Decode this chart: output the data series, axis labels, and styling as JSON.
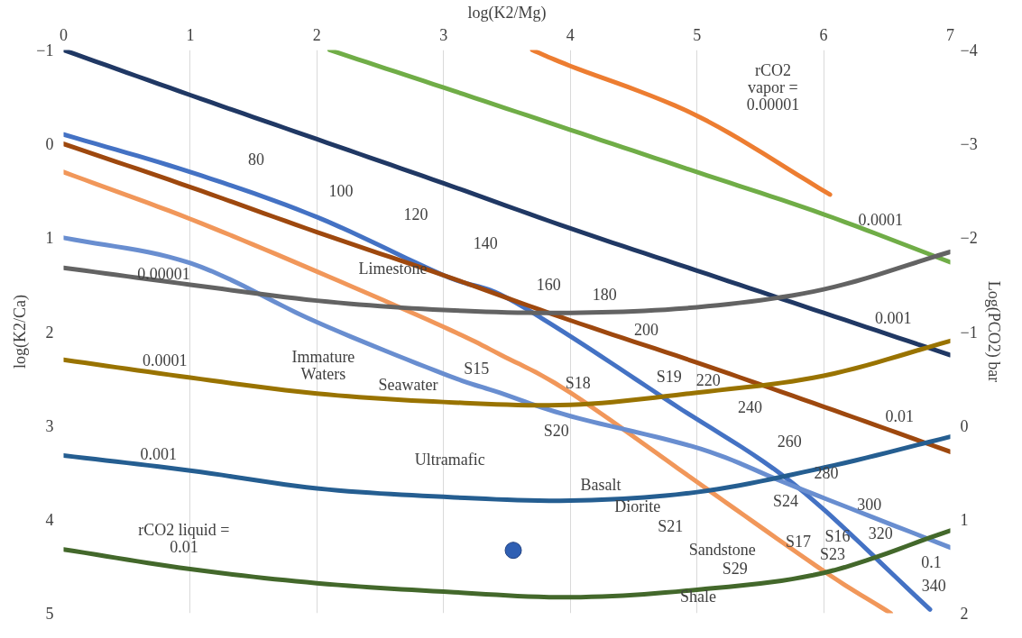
{
  "chart_data": {
    "type": "line",
    "xlabel": "log(K2/Mg)",
    "ylabel": "log(K2/Ca)",
    "y2label": "Log(PCO2) bar",
    "xlim": [
      0,
      7
    ],
    "xticks": [
      0,
      1,
      2,
      3,
      4,
      5,
      6,
      7
    ],
    "ylim": [
      5,
      -1
    ],
    "yticks": [
      -1,
      0,
      1,
      2,
      3,
      4,
      5
    ],
    "y2lim": [
      2,
      -4
    ],
    "y2ticks": [
      -4,
      -3,
      -2,
      -1,
      0,
      1,
      2
    ],
    "grid": "x",
    "marker": "none",
    "line_style": "solid",
    "series": [
      {
        "color": "#203864",
        "x": [
          0,
          1,
          2,
          3,
          4,
          5,
          6,
          7
        ],
        "values": [
          -1,
          -0.52,
          -0.05,
          0.42,
          0.9,
          1.35,
          1.8,
          2.25
        ]
      },
      {
        "color": "#70ad47",
        "x": [
          2.1,
          3,
          4,
          5,
          6,
          7
        ],
        "values": [
          -1,
          -0.6,
          -0.15,
          0.3,
          0.75,
          1.26
        ]
      },
      {
        "color": "#ed7d31",
        "x": [
          3.7,
          4,
          5,
          6.05
        ],
        "values": [
          -1,
          -0.83,
          -0.3,
          0.54
        ]
      },
      {
        "color": "#4472c4",
        "x": [
          0,
          1,
          2,
          3,
          3.44,
          4,
          4.81,
          5.77,
          6.84
        ],
        "values": [
          -0.1,
          0.3,
          0.78,
          1.4,
          1.6,
          2.05,
          2.77,
          3.63,
          4.96
        ]
      },
      {
        "color": "#9e480e",
        "x": [
          0,
          1,
          2,
          3,
          4,
          5,
          6,
          7
        ],
        "values": [
          0,
          0.46,
          0.94,
          1.4,
          1.88,
          2.33,
          2.8,
          3.28
        ]
      },
      {
        "color": "#f1975a",
        "x": [
          0,
          1,
          2,
          3,
          3.44,
          4,
          5.03,
          6,
          6.53
        ],
        "values": [
          0.3,
          0.8,
          1.36,
          1.95,
          2.24,
          2.65,
          3.63,
          4.55,
          5
        ]
      },
      {
        "color": "#698ed0",
        "x": [
          0,
          1,
          2,
          3,
          3.44,
          4,
          5.03,
          5.77,
          7
        ],
        "values": [
          1,
          1.27,
          1.9,
          2.45,
          2.65,
          2.9,
          3.25,
          3.65,
          4.3
        ]
      },
      {
        "color": "#636363",
        "x": [
          0,
          1,
          2,
          3,
          4,
          5,
          6,
          7
        ],
        "values": [
          1.32,
          1.5,
          1.67,
          1.77,
          1.8,
          1.74,
          1.55,
          1.15
        ]
      },
      {
        "color": "#997300",
        "x": [
          0,
          1,
          2,
          3,
          4,
          5,
          6,
          7
        ],
        "values": [
          2.3,
          2.49,
          2.66,
          2.75,
          2.78,
          2.65,
          2.47,
          2.1
        ]
      },
      {
        "color": "#255e91",
        "x": [
          0,
          1,
          2,
          3,
          4,
          5,
          6,
          7
        ],
        "values": [
          3.32,
          3.48,
          3.67,
          3.76,
          3.8,
          3.71,
          3.45,
          3.12
        ]
      },
      {
        "color": "#43682b",
        "x": [
          0,
          1,
          2,
          3,
          4,
          5,
          6,
          7
        ],
        "values": [
          4.32,
          4.53,
          4.68,
          4.77,
          4.83,
          4.75,
          4.57,
          4.12
        ]
      },
      {
        "type": "scatter",
        "marker": "circle",
        "color": "#2f5fb3",
        "x": [
          3.55
        ],
        "values": [
          4.33
        ]
      }
    ],
    "annotations": [
      "80",
      "100",
      "120",
      "140",
      "160",
      "180",
      "200",
      "220",
      "240",
      "260",
      "280",
      "300",
      "320",
      "340",
      "Limestone",
      "Immature\nWaters",
      "Seawater",
      "S15",
      "S18",
      "S19",
      "S20",
      "Ultramafic",
      "Basalt",
      "Diorite",
      "S21",
      "S24",
      "S17",
      "S16",
      "Sandstone",
      "S23",
      "S29",
      "Shale",
      "0.00001",
      "0.0001",
      "0.001",
      "rCO2 liquid =\n0.01",
      "rCO2\nvapor =\n0.00001",
      "0.0001",
      "0.001",
      "0.01",
      "0.1"
    ]
  }
}
